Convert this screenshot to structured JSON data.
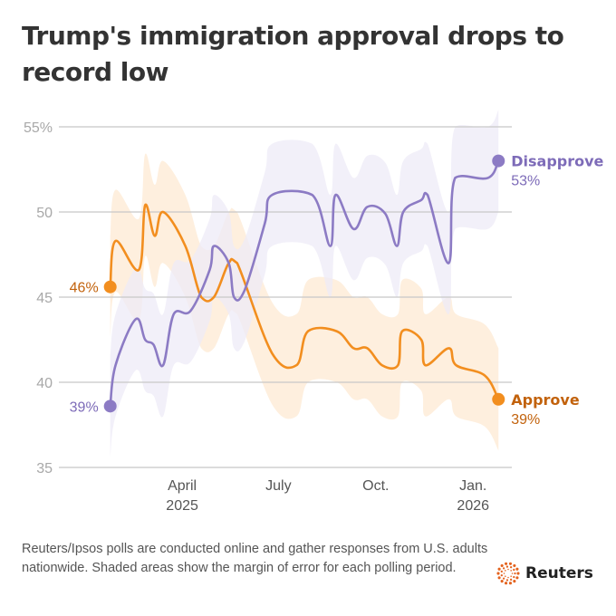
{
  "title": "Trump's immigration approval drops to record low",
  "footer": "Reuters/Ipsos polls are conducted online and gather responses from U.S. adults nationwide. Shaded areas show the margin of error for each polling period.",
  "logo_text": "Reuters",
  "chart_data": {
    "type": "line",
    "title": "Trump's immigration approval drops to record low",
    "xlabel": "",
    "ylabel": "",
    "ylim": [
      35,
      55
    ],
    "xlim": [
      "2025-01-01",
      "2026-01-31"
    ],
    "grid": true,
    "y_ticks": [
      {
        "value": 55,
        "label": "55%"
      },
      {
        "value": 50,
        "label": "50"
      },
      {
        "value": 45,
        "label": "45"
      },
      {
        "value": 40,
        "label": "40"
      },
      {
        "value": 35,
        "label": "35"
      }
    ],
    "x_ticks": [
      {
        "date": "2025-04-01",
        "label": "April",
        "sublabel": "2025"
      },
      {
        "date": "2025-07-01",
        "label": "July",
        "sublabel": ""
      },
      {
        "date": "2025-10-01",
        "label": "Oct.",
        "sublabel": ""
      },
      {
        "date": "2026-01-01",
        "label": "Jan.",
        "sublabel": "2026"
      }
    ],
    "band_halfwidth": 3,
    "series": [
      {
        "name": "Approve",
        "color": "#f28e1f",
        "label_color": "#c2620c",
        "band_color": "#fde9d3",
        "start_label": "46%",
        "end_label": "39%",
        "points": [
          [
            "2025-01-23",
            45.6
          ],
          [
            "2025-01-28",
            48.3
          ],
          [
            "2025-02-19",
            46.6
          ],
          [
            "2025-02-25",
            50.4
          ],
          [
            "2025-03-06",
            48.6
          ],
          [
            "2025-03-14",
            50.0
          ],
          [
            "2025-04-04",
            48.0
          ],
          [
            "2025-04-19",
            45.0
          ],
          [
            "2025-05-01",
            45.0
          ],
          [
            "2025-05-15",
            47.0
          ],
          [
            "2025-05-23",
            47.0
          ],
          [
            "2025-06-25",
            41.7
          ],
          [
            "2025-07-18",
            41.0
          ],
          [
            "2025-07-29",
            43.0
          ],
          [
            "2025-08-25",
            43.0
          ],
          [
            "2025-09-10",
            42.0
          ],
          [
            "2025-09-23",
            42.0
          ],
          [
            "2025-10-07",
            41.0
          ],
          [
            "2025-10-22",
            41.0
          ],
          [
            "2025-10-26",
            43.0
          ],
          [
            "2025-11-13",
            42.5
          ],
          [
            "2025-11-17",
            41.0
          ],
          [
            "2025-12-09",
            42.0
          ],
          [
            "2025-12-16",
            41.0
          ],
          [
            "2026-01-12",
            40.4
          ],
          [
            "2026-01-25",
            39.0
          ]
        ]
      },
      {
        "name": "Disapprove",
        "color": "#8c7bc4",
        "label_color": "#7d6bb8",
        "band_color": "#eeebf7",
        "start_label": "39%",
        "end_label": "53%",
        "points": [
          [
            "2025-01-23",
            38.6
          ],
          [
            "2025-01-28",
            41.0
          ],
          [
            "2025-02-16",
            43.7
          ],
          [
            "2025-02-25",
            42.5
          ],
          [
            "2025-03-05",
            42.2
          ],
          [
            "2025-03-14",
            41.0
          ],
          [
            "2025-03-24",
            44.0
          ],
          [
            "2025-04-09",
            44.2
          ],
          [
            "2025-04-27",
            46.6
          ],
          [
            "2025-05-01",
            48.0
          ],
          [
            "2025-05-15",
            47.0
          ],
          [
            "2025-05-20",
            45.0
          ],
          [
            "2025-05-30",
            45.4
          ],
          [
            "2025-06-18",
            49.3
          ],
          [
            "2025-06-25",
            51.0
          ],
          [
            "2025-08-02",
            51.0
          ],
          [
            "2025-08-19",
            48.0
          ],
          [
            "2025-08-24",
            51.0
          ],
          [
            "2025-09-10",
            49.0
          ],
          [
            "2025-09-23",
            50.3
          ],
          [
            "2025-10-10",
            49.9
          ],
          [
            "2025-10-21",
            48.0
          ],
          [
            "2025-10-27",
            50.0
          ],
          [
            "2025-11-13",
            50.7
          ],
          [
            "2025-11-19",
            51.0
          ],
          [
            "2025-12-09",
            47.0
          ],
          [
            "2025-12-15",
            52.0
          ],
          [
            "2026-01-15",
            52.0
          ],
          [
            "2026-01-25",
            53.0
          ]
        ]
      }
    ]
  }
}
